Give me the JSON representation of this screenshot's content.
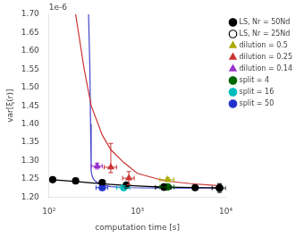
{
  "chart_data": {
    "type": "scatter",
    "xlabel": "computation time [s]",
    "ylabel": "var[ξ(r)]",
    "annotations": [
      "1e-6"
    ],
    "log": "x",
    "grid": false,
    "legend": "upper right",
    "xlim": [
      100,
      10000
    ],
    "xticks": [
      {
        "value": 100,
        "label": "10²"
      },
      {
        "value": 1000,
        "label": "10³"
      },
      {
        "value": 10000,
        "label": "10⁴"
      }
    ],
    "ylim": [
      1.2,
      1.7
    ],
    "yticks": [
      {
        "value": 1.2,
        "label": "1.20"
      },
      {
        "value": 1.25,
        "label": "1.25"
      },
      {
        "value": 1.3,
        "label": "1.30"
      },
      {
        "value": 1.35,
        "label": "1.35"
      },
      {
        "value": 1.4,
        "label": "1.40"
      },
      {
        "value": 1.45,
        "label": "1.45"
      },
      {
        "value": 1.5,
        "label": "1.50"
      },
      {
        "value": 1.55,
        "label": "1.55"
      },
      {
        "value": 1.6,
        "label": "1.60"
      },
      {
        "value": 1.65,
        "label": "1.65"
      },
      {
        "value": 1.7,
        "label": "1.70"
      }
    ],
    "series": [
      {
        "type": "line",
        "color": "black",
        "x": [
          110,
          150,
          200,
          300,
          500,
          800,
          1500,
          3000,
          6000,
          9000
        ],
        "values": [
          1.248,
          1.2455,
          1.243,
          1.239,
          1.235,
          1.232,
          1.229,
          1.227,
          1.226,
          1.225
        ]
      },
      {
        "type": "line",
        "color": "#cc3333",
        "x": [
          200,
          250,
          300,
          400,
          500,
          700,
          1000,
          2000,
          4000,
          8000
        ],
        "values": [
          1.7,
          1.55,
          1.45,
          1.37,
          1.33,
          1.295,
          1.265,
          1.245,
          1.237,
          1.232
        ]
      },
      {
        "type": "line",
        "color": "#4444cc",
        "x": [
          280,
          290,
          295,
          300,
          310,
          330,
          380,
          500,
          800,
          2000,
          5000,
          9000
        ],
        "values": [
          1.7,
          1.55,
          1.4,
          1.27,
          1.255,
          1.245,
          1.235,
          1.229,
          1.226,
          1.225,
          1.225,
          1.225
        ]
      },
      {
        "name": "LS, Nr = 50Nd",
        "type": "scatter",
        "color": "black",
        "marker": "circle",
        "x": [
          110,
          200,
          400,
          750,
          2000,
          4500,
          8500
        ],
        "values": [
          1.248,
          1.2445,
          1.24,
          1.233,
          1.228,
          1.226,
          1.225
        ]
      },
      {
        "name": "LS, Nr = 25Nd",
        "type": "scatter",
        "color": "black",
        "marker": "circle_open",
        "x": [
          2000,
          8500
        ],
        "values": [
          1.227,
          1.225
        ],
        "xerr_lo": [
          400,
          1500
        ],
        "xerr_hi": [
          400,
          1500
        ],
        "yerr_lo": [
          0.005,
          0.012
        ],
        "yerr_hi": [
          0.005,
          0.012
        ]
      },
      {
        "name": "dilution = 0.5",
        "type": "scatter",
        "color": "#aaaa00",
        "marker": "triangle",
        "x": [
          2200
        ],
        "values": [
          1.248
        ],
        "xerr_lo": [
          400
        ],
        "xerr_hi": [
          400
        ],
        "yerr_lo": [
          0.005
        ],
        "yerr_hi": [
          0.005
        ]
      },
      {
        "name": "dilution = 0.25",
        "type": "scatter",
        "color": "#cc3333",
        "marker": "triangle",
        "x": [
          500,
          800
        ],
        "values": [
          1.282,
          1.252
        ],
        "xerr_lo": [
          80,
          120
        ],
        "xerr_hi": [
          80,
          120
        ],
        "yerr_lo": [
          0.015,
          0.018
        ],
        "yerr_hi": [
          0.065,
          0.018
        ]
      },
      {
        "name": "dilution = 0.14",
        "type": "scatter",
        "color": "#9933cc",
        "marker": "triangle",
        "x": [
          350
        ],
        "values": [
          1.285
        ],
        "xerr_lo": [
          50
        ],
        "xerr_hi": [
          50
        ],
        "yerr_lo": [
          0.008
        ],
        "yerr_hi": [
          0.008
        ]
      },
      {
        "name": "split = 4",
        "type": "scatter",
        "color": "#006600",
        "marker": "circle",
        "x": [
          2200
        ],
        "values": [
          1.228
        ],
        "xerr_lo": [
          400
        ],
        "xerr_hi": [
          400
        ],
        "yerr_lo": [
          0.005
        ],
        "yerr_hi": [
          0.005
        ]
      },
      {
        "name": "split = 16",
        "type": "scatter",
        "color": "#00bbbb",
        "marker": "circle",
        "x": [
          700
        ],
        "values": [
          1.226
        ],
        "xerr_lo": [
          120
        ],
        "xerr_hi": [
          120
        ],
        "yerr_lo": [
          0.005
        ],
        "yerr_hi": [
          0.005
        ]
      },
      {
        "name": "split = 50",
        "type": "scatter",
        "color": "#2233cc",
        "marker": "circle",
        "x": [
          400
        ],
        "values": [
          1.226
        ],
        "xerr_lo": [
          60
        ],
        "xerr_hi": [
          60
        ],
        "yerr_lo": [
          0.005
        ],
        "yerr_hi": [
          0.005
        ]
      }
    ]
  }
}
